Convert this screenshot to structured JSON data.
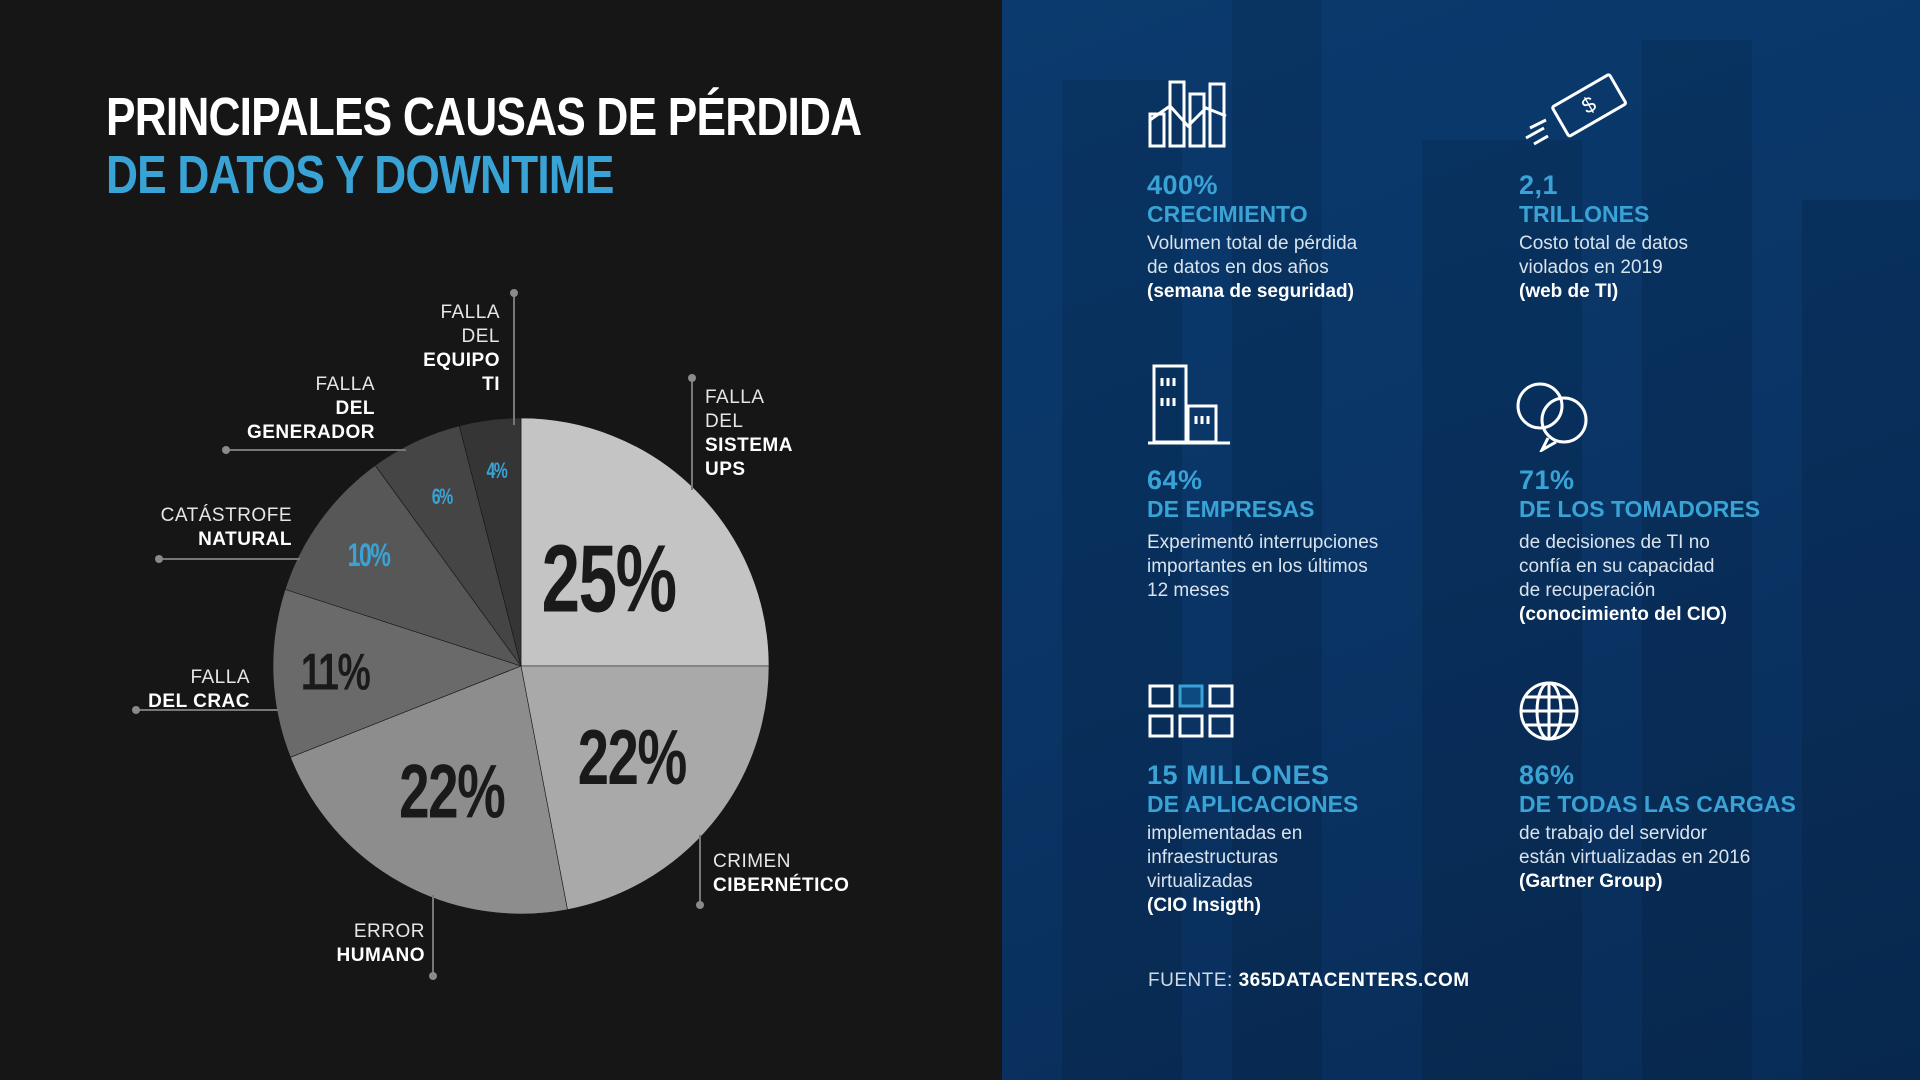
{
  "title": {
    "line1": "PRINCIPALES CAUSAS DE PÉRDIDA",
    "line2": "DE DATOS Y DOWNTIME"
  },
  "colors": {
    "accent": "#3aa3d6",
    "left_bg": "#161616",
    "right_bg": "#0a3566"
  },
  "chart_data": {
    "type": "pie",
    "start": "12 o'clock",
    "direction": "clockwise",
    "slices": [
      {
        "label_normal": [
          "FALLA",
          "DEL"
        ],
        "label_bold": [
          "SISTEMA",
          "UPS"
        ],
        "value": 25,
        "display": "25%",
        "color": "#c4c4c4",
        "text_color": "#1a1a1a"
      },
      {
        "label_normal": [
          "CRIMEN"
        ],
        "label_bold": [
          "CIBERNÉTICO"
        ],
        "value": 22,
        "display": "22%",
        "color": "#a9a9a9",
        "text_color": "#1a1a1a"
      },
      {
        "label_normal": [
          "ERROR"
        ],
        "label_bold": [
          "HUMANO"
        ],
        "value": 22,
        "display": "22%",
        "color": "#8d8d8d",
        "text_color": "#1a1a1a"
      },
      {
        "label_normal": [
          "FALLA"
        ],
        "label_bold": [
          "DEL CRAC"
        ],
        "value": 11,
        "display": "11%",
        "color": "#6a6a6a",
        "text_color": "#1a1a1a"
      },
      {
        "label_normal": [
          "CATÁSTROFE"
        ],
        "label_bold": [
          "NATURAL"
        ],
        "value": 10,
        "display": "10%",
        "color": "#575757",
        "text_color": "#3aa3d6"
      },
      {
        "label_normal": [
          "FALLA"
        ],
        "label_bold": [
          "DEL",
          "GENERADOR"
        ],
        "value": 6,
        "display": "6%",
        "color": "#454545",
        "text_color": "#3aa3d6"
      },
      {
        "label_normal": [
          "FALLA",
          "DEL"
        ],
        "label_bold": [
          "EQUIPO",
          "TI"
        ],
        "value": 4,
        "display": "4%",
        "color": "#353535",
        "text_color": "#3aa3d6"
      }
    ]
  },
  "stats": [
    {
      "icon": "bar-chart-growth-icon",
      "value": "400%",
      "heading": "CRECIMIENTO",
      "desc": [
        "Volumen total de pérdida",
        "de datos en dos años"
      ],
      "source": "(semana de seguridad)"
    },
    {
      "icon": "dollar-bill-icon",
      "value": "2,1",
      "heading": "TRILLONES",
      "desc": [
        "Costo total de datos",
        "violados en 2019"
      ],
      "source": "(web de TI)"
    },
    {
      "icon": "buildings-icon",
      "value": "64%",
      "heading": "DE EMPRESAS",
      "desc": [
        "Experimentó interrupciones",
        "importantes en los últimos",
        "12 meses"
      ],
      "source": ""
    },
    {
      "icon": "speech-bubbles-icon",
      "value": "71%",
      "heading": "DE LOS TOMADORES",
      "desc": [
        "de decisiones de TI  no",
        "confía en su capacidad",
        "de recuperación"
      ],
      "source": "(conocimiento del CIO)"
    },
    {
      "icon": "app-grid-icon",
      "value": "15 MILLONES",
      "heading": "DE APLICACIONES",
      "desc": [
        "implementadas en",
        "infraestructuras",
        "virtualizadas"
      ],
      "source": "(CIO Insigth)"
    },
    {
      "icon": "globe-icon",
      "value": "86%",
      "heading": "DE TODAS LAS CARGAS",
      "desc": [
        "de trabajo del servidor",
        "están virtualizadas en 2016"
      ],
      "source": "(Gartner Group)"
    }
  ],
  "footer": {
    "source_label": "FUENTE:",
    "source_value": "365DATACENTERS.COM"
  }
}
